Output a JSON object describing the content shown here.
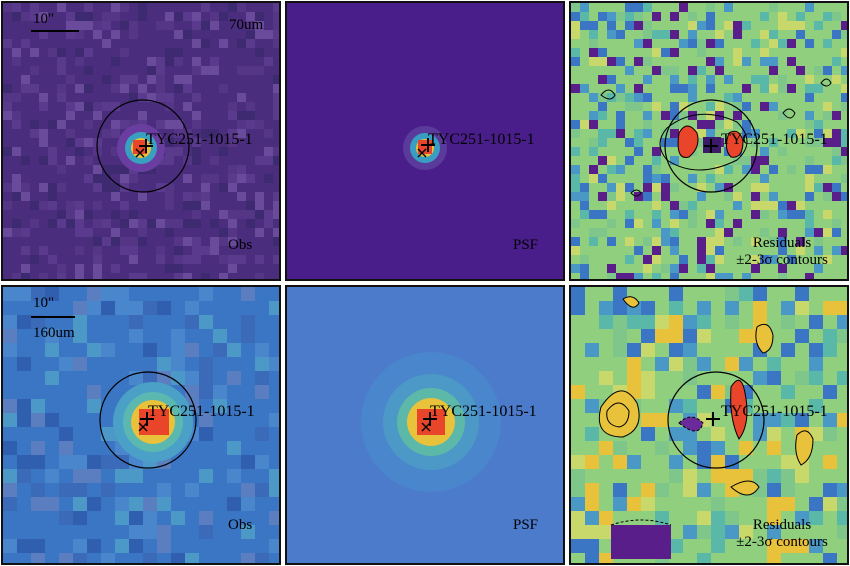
{
  "target": "TYC251-1015-1",
  "scale_bar": "10\"",
  "rows": [
    {
      "band": "70um",
      "panels": [
        {
          "kind": "obs",
          "label": "Obs"
        },
        {
          "kind": "psf",
          "label": "PSF"
        },
        {
          "kind": "residuals",
          "label_line1": "Residuals",
          "label_line2": "±2-3σ contours"
        }
      ]
    },
    {
      "band": "160um",
      "panels": [
        {
          "kind": "obs",
          "label": "Obs"
        },
        {
          "kind": "psf",
          "label": "PSF"
        },
        {
          "kind": "residuals",
          "label_line1": "Residuals",
          "label_line2": "±2-3σ contours"
        }
      ]
    }
  ],
  "colors": {
    "obs70_background": "#4a2d7c",
    "psf70_background": "#4a1e8a",
    "obs160_background": "#3b76c4",
    "psf160_background": "#4c7bcc",
    "residual_background": "#8fcf7e",
    "peak": "#e8452a",
    "marker": "#000000"
  }
}
